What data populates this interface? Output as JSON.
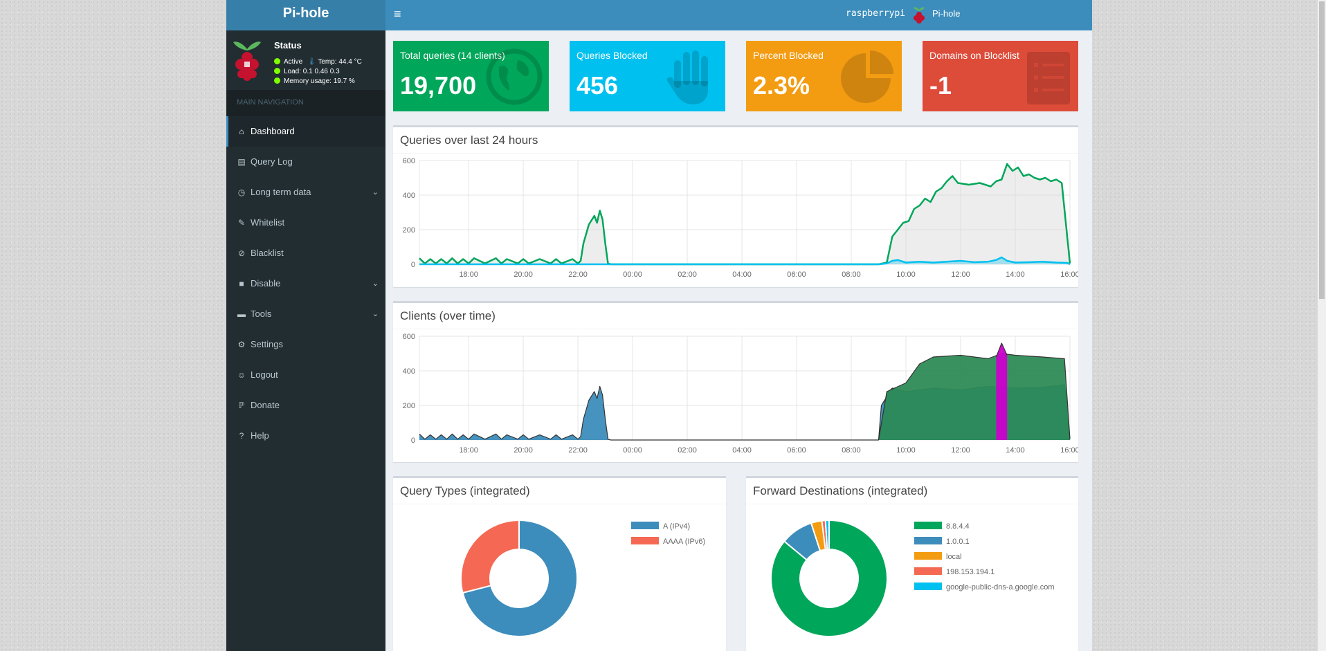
{
  "app": {
    "logo": "Pi-hole"
  },
  "status": {
    "title": "Status",
    "active": "Active",
    "temp": "Temp: 44.4 °C",
    "load": "Load:  0.1  0.46  0.3",
    "memory": "Memory usage:  19.7 %"
  },
  "nav": {
    "header": "MAIN NAVIGATION",
    "items": [
      {
        "label": "Dashboard",
        "icon": "home-icon"
      },
      {
        "label": "Query Log",
        "icon": "file-icon"
      },
      {
        "label": "Long term data",
        "icon": "clock-icon"
      },
      {
        "label": "Whitelist",
        "icon": "edit-icon"
      },
      {
        "label": "Blacklist",
        "icon": "ban-icon"
      },
      {
        "label": "Disable",
        "icon": "stop-icon"
      },
      {
        "label": "Tools",
        "icon": "folder-icon"
      },
      {
        "label": "Settings",
        "icon": "gears-icon"
      },
      {
        "label": "Logout",
        "icon": "user-icon"
      },
      {
        "label": "Donate",
        "icon": "paypal-icon"
      },
      {
        "label": "Help",
        "icon": "question-icon"
      }
    ]
  },
  "topbar": {
    "hostname": "raspberrypi",
    "user": "Pi-hole"
  },
  "stats": [
    {
      "label": "Total queries (14 clients)",
      "value": "19,700",
      "color": "#00a65a"
    },
    {
      "label": "Queries Blocked",
      "value": "456",
      "color": "#00c0ef"
    },
    {
      "label": "Percent Blocked",
      "value": "2.3%",
      "color": "#f39c12"
    },
    {
      "label": "Domains on Blocklist",
      "value": "-1",
      "color": "#dd4b39"
    }
  ],
  "queries_chart": {
    "title": "Queries over last 24 hours"
  },
  "clients_chart": {
    "title": "Clients (over time)"
  },
  "query_types": {
    "title": "Query Types (integrated)",
    "legend": [
      "A (IPv4)",
      "AAAA (IPv6)"
    ]
  },
  "forward_dest": {
    "title": "Forward Destinations (integrated)",
    "legend": [
      "8.8.4.4",
      "1.0.0.1",
      "local",
      "198.153.194.1",
      "google-public-dns-a.google.com"
    ]
  },
  "chart_data": [
    {
      "type": "area",
      "title": "Queries over last 24 hours",
      "y_ticks": [
        0,
        200,
        400,
        600
      ],
      "ylim": [
        0,
        600
      ],
      "x_ticks": [
        "18:00",
        "20:00",
        "22:00",
        "00:00",
        "02:00",
        "04:00",
        "06:00",
        "08:00",
        "10:00",
        "12:00",
        "14:00",
        "16:00"
      ],
      "xlim": [
        16.2,
        40.0
      ],
      "series": [
        {
          "color": "#00a65a",
          "fill": "rgba(220,220,220,0.5)",
          "x": [
            16.2,
            16.4,
            16.6,
            16.8,
            17.0,
            17.2,
            17.4,
            17.6,
            17.8,
            18.0,
            18.2,
            18.6,
            19.0,
            19.2,
            19.4,
            19.8,
            20.0,
            20.2,
            20.6,
            21.0,
            21.2,
            21.4,
            21.8,
            22.0,
            22.1,
            22.2,
            22.4,
            22.6,
            22.7,
            22.8,
            22.9,
            23.0,
            23.1,
            23.2,
            23.4,
            24.0,
            26.0,
            28.0,
            30.0,
            32.0,
            33.0,
            33.3,
            33.5,
            33.7,
            33.9,
            34.1,
            34.3,
            34.5,
            34.7,
            34.9,
            35.1,
            35.3,
            35.5,
            35.7,
            35.9,
            36.3,
            36.7,
            37.1,
            37.3,
            37.5,
            37.7,
            37.9,
            38.1,
            38.3,
            38.5,
            38.7,
            38.9,
            39.1,
            39.3,
            39.5,
            39.7,
            40.0
          ],
          "y": [
            35,
            5,
            30,
            5,
            30,
            5,
            35,
            5,
            30,
            5,
            35,
            5,
            35,
            5,
            30,
            5,
            30,
            5,
            30,
            5,
            30,
            5,
            30,
            5,
            20,
            120,
            230,
            280,
            240,
            310,
            260,
            120,
            5,
            0,
            0,
            0,
            0,
            0,
            0,
            0,
            0,
            10,
            160,
            200,
            240,
            250,
            320,
            340,
            380,
            360,
            420,
            440,
            480,
            510,
            470,
            460,
            470,
            450,
            480,
            490,
            580,
            540,
            560,
            510,
            520,
            500,
            490,
            500,
            480,
            490,
            470,
            5
          ]
        },
        {
          "color": "#00c0ef",
          "fill": "rgba(0,192,239,0.3)",
          "x": [
            16.2,
            33.0,
            33.3,
            33.5,
            33.7,
            34.0,
            34.5,
            35.0,
            35.5,
            36.0,
            36.5,
            37.0,
            37.3,
            37.5,
            37.7,
            38.0,
            38.5,
            39.0,
            39.5,
            39.9,
            40.0
          ],
          "y": [
            0,
            0,
            5,
            20,
            25,
            10,
            15,
            10,
            15,
            20,
            12,
            15,
            25,
            40,
            20,
            10,
            12,
            15,
            10,
            8,
            0
          ]
        }
      ]
    },
    {
      "type": "area",
      "title": "Clients (over time)",
      "y_ticks": [
        0,
        200,
        400,
        600
      ],
      "ylim": [
        0,
        600
      ],
      "x_ticks": [
        "18:00",
        "20:00",
        "22:00",
        "00:00",
        "02:00",
        "04:00",
        "06:00",
        "08:00",
        "10:00",
        "12:00",
        "14:00",
        "16:00"
      ],
      "xlim": [
        16.2,
        40.0
      ],
      "series": [
        {
          "color": "#3c8dbc",
          "x": [
            16.2,
            16.4,
            16.6,
            16.8,
            17.0,
            17.2,
            17.4,
            17.6,
            17.8,
            18.0,
            18.2,
            18.6,
            19.0,
            19.2,
            19.4,
            19.8,
            20.0,
            20.2,
            20.6,
            21.0,
            21.2,
            21.4,
            21.8,
            22.0,
            22.1,
            22.2,
            22.4,
            22.6,
            22.7,
            22.8,
            22.9,
            23.0,
            23.1,
            23.2,
            23.4,
            24.0,
            28.0,
            32.0,
            33.0,
            33.1,
            33.3,
            34.0,
            35.0,
            36.0,
            37.0,
            38.0,
            39.0,
            39.8,
            40.0
          ],
          "y": [
            35,
            5,
            30,
            5,
            30,
            5,
            35,
            5,
            30,
            5,
            35,
            5,
            35,
            5,
            30,
            5,
            30,
            5,
            30,
            5,
            30,
            5,
            30,
            5,
            20,
            120,
            230,
            280,
            240,
            310,
            260,
            120,
            5,
            0,
            0,
            0,
            0,
            0,
            0,
            200,
            250,
            260,
            250,
            260,
            255,
            260,
            250,
            255,
            5
          ]
        },
        {
          "color": "#0073b7",
          "x": [
            33.0,
            33.3,
            33.5,
            34.0,
            35.0,
            36.0,
            37.0,
            38.0,
            39.0,
            39.8,
            40.0
          ],
          "y": [
            0,
            270,
            300,
            280,
            300,
            290,
            310,
            300,
            305,
            320,
            5
          ]
        },
        {
          "color": "#2e8b57",
          "x": [
            33.0,
            33.3,
            34.0,
            34.5,
            35.0,
            36.0,
            37.0,
            37.5,
            38.0,
            39.0,
            39.8,
            40.0
          ],
          "y": [
            0,
            280,
            330,
            440,
            480,
            490,
            470,
            500,
            490,
            480,
            470,
            5
          ]
        },
        {
          "color": "#cc00cc",
          "x": [
            37.3,
            37.5,
            37.7
          ],
          "y": [
            480,
            560,
            490
          ]
        }
      ]
    },
    {
      "type": "pie",
      "title": "Query Types (integrated)",
      "labels": [
        "A (IPv4)",
        "AAAA (IPv6)"
      ],
      "values": [
        71,
        29
      ],
      "colors": [
        "#3c8dbc",
        "#f56954"
      ]
    },
    {
      "type": "pie",
      "title": "Forward Destinations (integrated)",
      "labels": [
        "8.8.4.4",
        "1.0.0.1",
        "local",
        "198.153.194.1",
        "google-public-dns-a.google.com"
      ],
      "values": [
        86,
        9,
        3,
        1,
        1
      ],
      "colors": [
        "#00a65a",
        "#3c8dbc",
        "#f39c12",
        "#f56954",
        "#00c0ef"
      ]
    }
  ]
}
